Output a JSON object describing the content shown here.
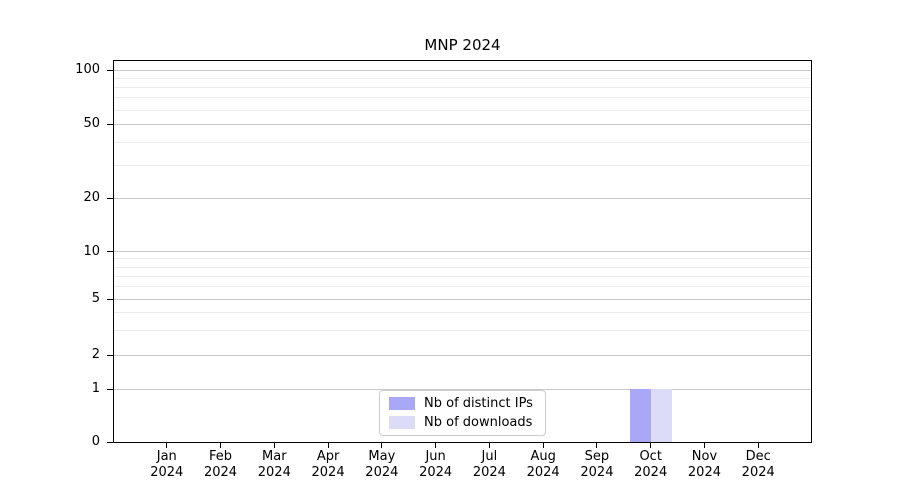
{
  "title": "MNP 2024",
  "legend": {
    "items": [
      {
        "label": "Nb of distinct IPs",
        "color": "#a8a8f7"
      },
      {
        "label": "Nb of downloads",
        "color": "#dcdcf9"
      }
    ]
  },
  "chart_data": {
    "type": "bar",
    "title": "MNP 2024",
    "categories": [
      "Jan",
      "Feb",
      "Mar",
      "Apr",
      "May",
      "Jun",
      "Jul",
      "Aug",
      "Sep",
      "Oct",
      "Nov",
      "Dec"
    ],
    "category_year": "2024",
    "series": [
      {
        "name": "Nb of distinct IPs",
        "color": "#a8a8f7",
        "values": [
          0,
          0,
          0,
          0,
          0,
          0,
          0,
          0,
          0,
          1,
          0,
          0
        ]
      },
      {
        "name": "Nb of downloads",
        "color": "#dcdcf9",
        "values": [
          0,
          0,
          0,
          0,
          0,
          0,
          0,
          0,
          0,
          1,
          0,
          0
        ]
      }
    ],
    "xlabel": "",
    "ylabel": "",
    "yscale": "symlog",
    "yticks": [
      0,
      1,
      2,
      5,
      10,
      20,
      50,
      100
    ],
    "yticks_minor": [
      3,
      4,
      6,
      7,
      8,
      9,
      30,
      40,
      60,
      70,
      80,
      90
    ],
    "ylim": [
      0,
      113
    ],
    "grid": {
      "axis": "y",
      "major_color": "#c9c9c9",
      "minor_color": "#ebebeb"
    },
    "legend_position": "lower center"
  }
}
